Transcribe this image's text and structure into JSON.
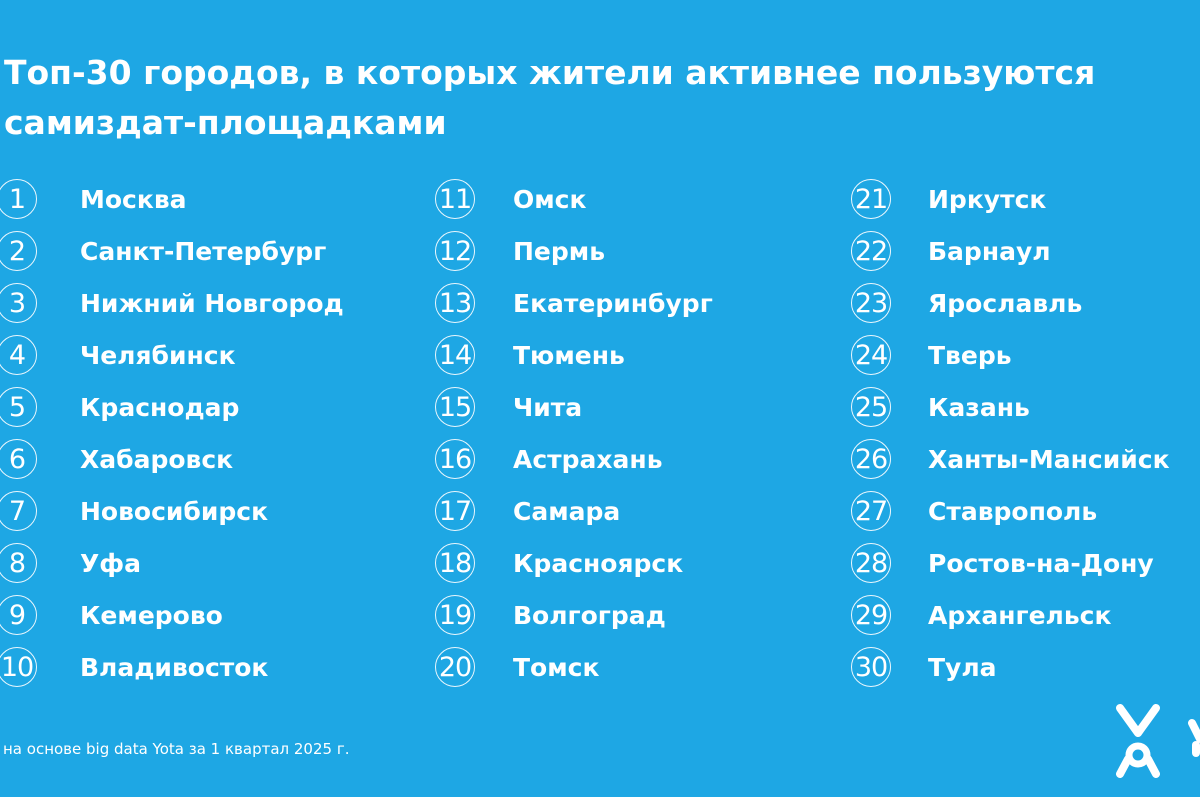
{
  "title": {
    "line1": "Топ-30 городов, в которых жители активнее пользуются",
    "line2": "самиздат-площадками"
  },
  "columns": [
    {
      "items": [
        {
          "rank": "1",
          "city": "Москва"
        },
        {
          "rank": "2",
          "city": "Санкт-Петербург"
        },
        {
          "rank": "3",
          "city": "Нижний Новгород"
        },
        {
          "rank": "4",
          "city": "Челябинск"
        },
        {
          "rank": "5",
          "city": "Краснодар"
        },
        {
          "rank": "6",
          "city": "Хабаровск"
        },
        {
          "rank": "7",
          "city": "Новосибирск"
        },
        {
          "rank": "8",
          "city": "Уфа"
        },
        {
          "rank": "9",
          "city": "Кемерово"
        },
        {
          "rank": "10",
          "city": "Владивосток"
        }
      ]
    },
    {
      "items": [
        {
          "rank": "11",
          "city": "Омск"
        },
        {
          "rank": "12",
          "city": "Пермь"
        },
        {
          "rank": "13",
          "city": "Екатеринбург"
        },
        {
          "rank": "14",
          "city": "Тюмень"
        },
        {
          "rank": "15",
          "city": "Чита"
        },
        {
          "rank": "16",
          "city": "Астрахань"
        },
        {
          "rank": "17",
          "city": "Самара"
        },
        {
          "rank": "18",
          "city": "Красноярск"
        },
        {
          "rank": "19",
          "city": "Волгоград"
        },
        {
          "rank": "20",
          "city": "Томск"
        }
      ]
    },
    {
      "items": [
        {
          "rank": "21",
          "city": "Иркутск"
        },
        {
          "rank": "22",
          "city": "Барнаул"
        },
        {
          "rank": "23",
          "city": "Ярославль"
        },
        {
          "rank": "24",
          "city": "Тверь"
        },
        {
          "rank": "25",
          "city": "Казань"
        },
        {
          "rank": "26",
          "city": "Ханты-Мансийск"
        },
        {
          "rank": "27",
          "city": "Ставрополь"
        },
        {
          "rank": "28",
          "city": "Ростов-на-Дону"
        },
        {
          "rank": "29",
          "city": "Архангельск"
        },
        {
          "rank": "30",
          "city": "Тула"
        }
      ]
    }
  ],
  "footnote": "на основе big data Yota за 1 квартал 2025 г.",
  "logo": {
    "icon": "yota-logo-icon",
    "color": "#ffffff"
  },
  "colors": {
    "background": "#1ea7e4",
    "text": "#ffffff"
  }
}
